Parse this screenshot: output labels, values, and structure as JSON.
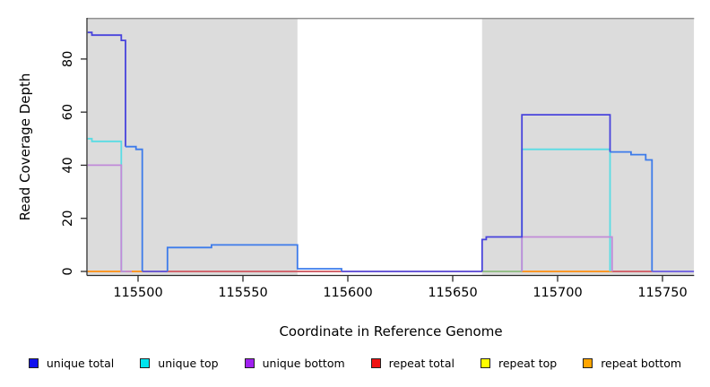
{
  "figure": {
    "xlabel": "Coordinate in Reference Genome",
    "ylabel": "Read Coverage Depth"
  },
  "chart_data": {
    "type": "line",
    "title": "",
    "xlabel": "Coordinate in Reference Genome",
    "ylabel": "Read Coverage Depth",
    "xlim": [
      115476,
      115765
    ],
    "ylim": [
      0,
      93
    ],
    "x_ticks": [
      115500,
      115550,
      115600,
      115650,
      115700,
      115750
    ],
    "y_ticks": [
      0,
      20,
      40,
      60,
      80
    ],
    "grid": false,
    "legend_position": "bottom",
    "shaded_regions": [
      [
        115476,
        115576
      ],
      [
        115664,
        115765
      ]
    ],
    "shade_color": "#dcdcdc",
    "top_border_color": "#909090",
    "axis_color": "#2b2b2b",
    "series": [
      {
        "name": "unique total",
        "swatch": "#1111ee",
        "z": 5,
        "segments": [
          {
            "color": "#4843dc",
            "points": [
              [
                115476,
                90
              ],
              [
                115478,
                90
              ],
              [
                115478,
                89
              ],
              [
                115492,
                89
              ],
              [
                115492,
                87
              ],
              [
                115494,
                87
              ],
              [
                115494,
                47
              ]
            ]
          },
          {
            "color": "#3d7bea",
            "points": [
              [
                115494,
                47
              ],
              [
                115499,
                47
              ],
              [
                115499,
                46
              ],
              [
                115502,
                46
              ],
              [
                115502,
                0
              ]
            ]
          },
          {
            "color": "#5a55e6",
            "points": [
              [
                115502,
                0
              ],
              [
                115514,
                0
              ]
            ]
          },
          {
            "color": "#3d7bea",
            "points": [
              [
                115514,
                0
              ],
              [
                115514,
                9
              ],
              [
                115535,
                9
              ],
              [
                115535,
                10
              ],
              [
                115576,
                10
              ],
              [
                115576,
                1
              ],
              [
                115597,
                1
              ],
              [
                115597,
                0
              ]
            ]
          },
          {
            "color": "#5a55e6",
            "points": [
              [
                115597,
                0
              ],
              [
                115664,
                0
              ]
            ]
          },
          {
            "color": "#4843dc",
            "points": [
              [
                115664,
                0
              ],
              [
                115664,
                12
              ],
              [
                115666,
                12
              ],
              [
                115666,
                13
              ],
              [
                115683,
                13
              ],
              [
                115683,
                59
              ],
              [
                115725,
                59
              ],
              [
                115725,
                45
              ]
            ]
          },
          {
            "color": "#3d7bea",
            "points": [
              [
                115725,
                45
              ],
              [
                115735,
                45
              ],
              [
                115735,
                44
              ],
              [
                115742,
                44
              ],
              [
                115742,
                42
              ],
              [
                115745,
                42
              ],
              [
                115745,
                0
              ]
            ]
          },
          {
            "color": "#6a5ae0",
            "points": [
              [
                115745,
                0
              ],
              [
                115765,
                0
              ]
            ]
          }
        ]
      },
      {
        "name": "unique top",
        "swatch": "#00e5ee",
        "z": 3,
        "segments": [
          {
            "color": "#58dce4",
            "points": [
              [
                115476,
                50
              ],
              [
                115478,
                50
              ],
              [
                115478,
                49
              ],
              [
                115492,
                49
              ],
              [
                115492,
                0
              ],
              [
                115494,
                0
              ]
            ]
          },
          {
            "color": "#8cc88c",
            "points": [
              [
                115664,
                0
              ],
              [
                115683,
                0
              ]
            ]
          },
          {
            "color": "#58dce4",
            "points": [
              [
                115683,
                0
              ],
              [
                115683,
                46
              ],
              [
                115725,
                46
              ],
              [
                115725,
                0
              ]
            ]
          }
        ]
      },
      {
        "name": "unique bottom",
        "swatch": "#a020f0",
        "z": 4,
        "segments": [
          {
            "color": "#c18ad8",
            "points": [
              [
                115476,
                40
              ],
              [
                115492,
                40
              ],
              [
                115492,
                0
              ],
              [
                115497,
                0
              ]
            ]
          },
          {
            "color": "#c18ad8",
            "points": [
              [
                115683,
                0
              ],
              [
                115683,
                13
              ],
              [
                115726,
                13
              ],
              [
                115726,
                0
              ]
            ]
          }
        ]
      },
      {
        "name": "repeat total",
        "swatch": "#ee1111",
        "z": 1,
        "segments": [
          {
            "color": "#ce5570",
            "points": [
              [
                115476,
                0
              ],
              [
                115745,
                0
              ]
            ]
          }
        ]
      },
      {
        "name": "repeat top",
        "swatch": "#ffff00",
        "z": 0,
        "segments": [
          {
            "color": "#e8d830",
            "points": [
              [
                115476,
                0
              ],
              [
                115745,
                0
              ]
            ]
          }
        ]
      },
      {
        "name": "repeat bottom",
        "swatch": "#ffa500",
        "z": 2,
        "segments": [
          {
            "color": "#ff9e1e",
            "points": [
              [
                115476,
                0
              ],
              [
                115511,
                0
              ]
            ]
          },
          {
            "color": "#ff9e1e",
            "points": [
              [
                115683,
                0
              ],
              [
                115726,
                0
              ]
            ]
          }
        ]
      }
    ]
  }
}
